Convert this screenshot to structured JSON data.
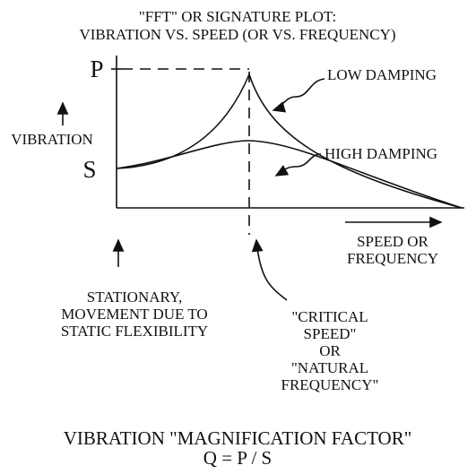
{
  "title": [
    "\"FFT\" OR SIGNATURE PLOT:",
    "VIBRATION VS. SPEED (OR VS. FREQUENCY)"
  ],
  "axis": {
    "peak": "P",
    "start": "S",
    "y_label": "VIBRATION",
    "x_label": [
      "SPEED OR",
      "FREQUENCY"
    ]
  },
  "curves": {
    "low": "LOW DAMPING",
    "high": "HIGH DAMPING"
  },
  "annotations": {
    "stationary": [
      "STATIONARY,",
      "MOVEMENT DUE TO",
      "STATIC FLEXIBILITY"
    ],
    "critical": [
      "\"CRITICAL",
      "SPEED\"",
      "OR",
      "\"NATURAL",
      "FREQUENCY\""
    ]
  },
  "footer": [
    "VIBRATION \"MAGNIFICATION FACTOR\"",
    "Q = P / S"
  ]
}
